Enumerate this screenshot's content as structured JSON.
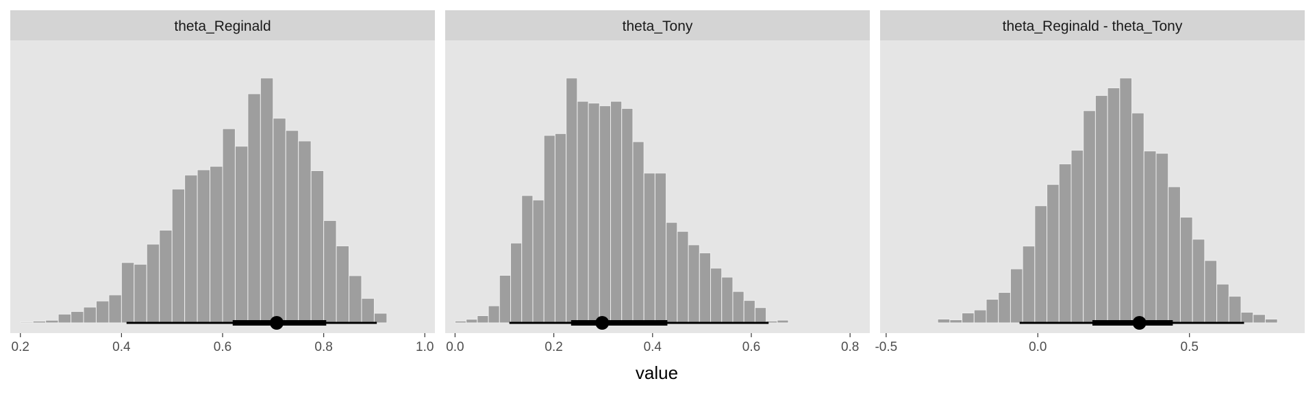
{
  "chart_data": {
    "type": "bar",
    "subtype": "faceted-histogram-with-pointinterval",
    "xlabel": "value",
    "ylabel": "",
    "grid": false,
    "legend": "none",
    "colors": {
      "panel_bg": "#e5e5e5",
      "strip_bg": "#d4d4d4",
      "bar_fill": "#9e9e9e",
      "bar_edge": "#eeeeee",
      "interval": "#000000"
    },
    "facets": [
      {
        "title": "theta_Reginald",
        "xlim": [
          0.18,
          1.02
        ],
        "ticks": [
          {
            "value": 0.2,
            "label": "0.2"
          },
          {
            "value": 0.4,
            "label": "0.4"
          },
          {
            "value": 0.6,
            "label": "0.6"
          },
          {
            "value": 0.8,
            "label": "0.8"
          },
          {
            "value": 1.0,
            "label": "1.0"
          }
        ],
        "bins": {
          "start": 0.2,
          "width": 0.025,
          "counts": [
            1,
            2,
            3,
            10,
            13,
            18,
            25,
            32,
            69,
            67,
            90,
            106,
            153,
            169,
            175,
            179,
            222,
            202,
            262,
            280,
            234,
            220,
            208,
            174,
            117,
            88,
            54,
            28,
            11,
            0
          ]
        },
        "point": 0.707,
        "interval_66": [
          0.62,
          0.805
        ],
        "interval_95": [
          0.41,
          0.905
        ]
      },
      {
        "title": "theta_Tony",
        "xlim": [
          -0.02,
          0.84
        ],
        "ticks": [
          {
            "value": 0.0,
            "label": "0.0"
          },
          {
            "value": 0.2,
            "label": "0.2"
          },
          {
            "value": 0.4,
            "label": "0.4"
          },
          {
            "value": 0.6,
            "label": "0.6"
          },
          {
            "value": 0.8,
            "label": "0.8"
          }
        ],
        "bins": {
          "start": 0.0,
          "width": 0.0225,
          "counts": [
            2,
            4,
            8,
            19,
            53,
            89,
            142,
            137,
            209,
            211,
            273,
            247,
            245,
            242,
            247,
            239,
            202,
            167,
            167,
            112,
            102,
            87,
            78,
            61,
            51,
            35,
            25,
            17,
            2,
            3
          ]
        },
        "point": 0.298,
        "interval_66": [
          0.235,
          0.43
        ],
        "interval_95": [
          0.11,
          0.635
        ]
      },
      {
        "title": "theta_Reginald - theta_Tony",
        "xlim": [
          -0.52,
          0.88
        ],
        "ticks": [
          {
            "value": -0.5,
            "label": "-0.5"
          },
          {
            "value": 0.0,
            "label": "0.0"
          },
          {
            "value": 0.5,
            "label": "0.5"
          }
        ],
        "bins": {
          "start": -0.33,
          "width": 0.04,
          "counts": [
            5,
            4,
            13,
            17,
            31,
            40,
            71,
            101,
            154,
            182,
            209,
            227,
            279,
            299,
            309,
            322,
            276,
            226,
            223,
            179,
            139,
            110,
            82,
            51,
            35,
            14,
            11,
            5
          ]
        },
        "point": 0.335,
        "interval_66": [
          0.18,
          0.445
        ],
        "interval_95": [
          -0.06,
          0.68
        ]
      }
    ]
  }
}
